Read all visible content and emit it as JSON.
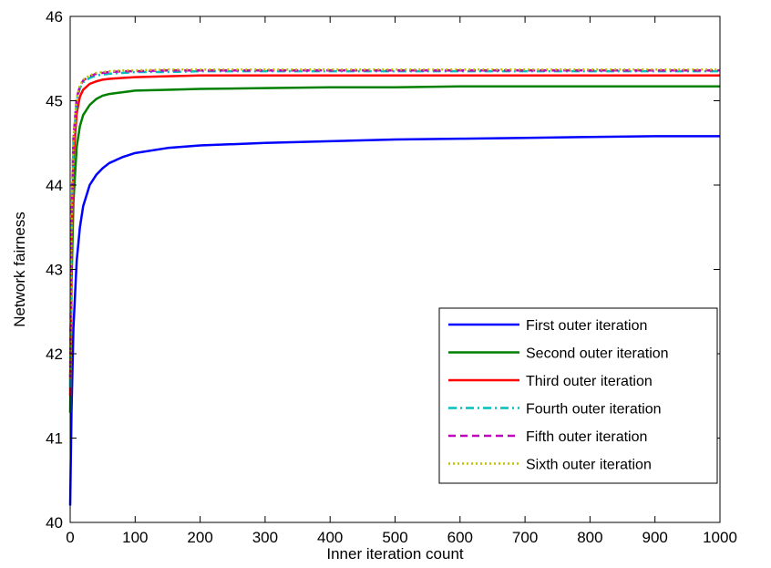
{
  "chart_data": {
    "type": "line",
    "xlabel": "Inner iteration count",
    "ylabel": "Network fairness",
    "xlim": [
      0,
      1000
    ],
    "ylim": [
      40,
      46
    ],
    "xticks": [
      "0",
      "100",
      "200",
      "300",
      "400",
      "500",
      "600",
      "700",
      "800",
      "900",
      "1000"
    ],
    "yticks": [
      "40",
      "41",
      "42",
      "43",
      "44",
      "45",
      "46"
    ],
    "grid": false,
    "legend_position": "bottom-right",
    "x": [
      0,
      2,
      5,
      10,
      15,
      20,
      30,
      40,
      50,
      60,
      80,
      100,
      150,
      200,
      300,
      400,
      500,
      600,
      700,
      800,
      900,
      1000
    ],
    "series": [
      {
        "name": "First outer iteration",
        "color": "#0000ff",
        "dash": "solid",
        "values": [
          40.2,
          41.3,
          42.3,
          43.1,
          43.5,
          43.75,
          44.0,
          44.12,
          44.2,
          44.26,
          44.33,
          44.38,
          44.44,
          44.47,
          44.5,
          44.52,
          44.54,
          44.55,
          44.56,
          44.57,
          44.58,
          44.58
        ]
      },
      {
        "name": "Second outer iteration",
        "color": "#008000",
        "dash": "solid",
        "values": [
          41.3,
          42.8,
          43.8,
          44.45,
          44.7,
          44.83,
          44.95,
          45.02,
          45.06,
          45.08,
          45.1,
          45.12,
          45.13,
          45.14,
          45.15,
          45.16,
          45.16,
          45.17,
          45.17,
          45.17,
          45.17,
          45.17
        ]
      },
      {
        "name": "Third outer iteration",
        "color": "#ff0000",
        "dash": "solid",
        "values": [
          41.5,
          43.2,
          44.3,
          44.85,
          45.05,
          45.13,
          45.2,
          45.23,
          45.25,
          45.26,
          45.27,
          45.28,
          45.29,
          45.3,
          45.3,
          45.3,
          45.3,
          45.3,
          45.3,
          45.3,
          45.3,
          45.3
        ]
      },
      {
        "name": "Fourth outer iteration",
        "color": "#00bfbf",
        "dash": "dashdot",
        "values": [
          41.6,
          43.4,
          44.5,
          45.0,
          45.15,
          45.22,
          45.27,
          45.3,
          45.31,
          45.32,
          45.33,
          45.34,
          45.34,
          45.35,
          45.35,
          45.35,
          45.35,
          45.35,
          45.35,
          45.35,
          45.35,
          45.35
        ]
      },
      {
        "name": "Fifth outer iteration",
        "color": "#bf00bf",
        "dash": "dashed",
        "values": [
          41.7,
          43.5,
          44.55,
          45.03,
          45.17,
          45.24,
          45.29,
          45.32,
          45.33,
          45.34,
          45.35,
          45.35,
          45.36,
          45.36,
          45.36,
          45.36,
          45.36,
          45.36,
          45.36,
          45.36,
          45.36,
          45.36
        ]
      },
      {
        "name": "Sixth outer iteration",
        "color": "#bfbf00",
        "dash": "dotted",
        "values": [
          41.7,
          43.5,
          44.55,
          45.04,
          45.18,
          45.25,
          45.3,
          45.33,
          45.34,
          45.35,
          45.36,
          45.36,
          45.37,
          45.37,
          45.37,
          45.37,
          45.37,
          45.37,
          45.37,
          45.37,
          45.37,
          45.37
        ]
      }
    ]
  }
}
